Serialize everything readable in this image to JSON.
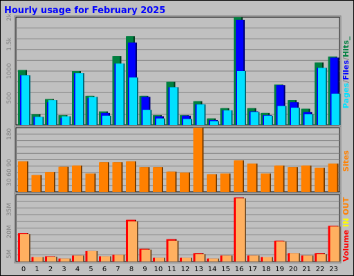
{
  "title": "Hourly usage for February 2025",
  "colors": {
    "background": "#c0c0c0",
    "title": "#0000ff",
    "grid": "#808080",
    "hits": "#008040",
    "files": "#0000ff",
    "pages": "#00e0ff",
    "sites": "#ff8000",
    "volume_in": "#ff0000",
    "volume_out": "#ffb060",
    "label_in": "#ffff00",
    "label_out": "#ff8000",
    "label_sep": "#c0c0c0"
  },
  "chart_data": [
    {
      "type": "bar",
      "ylabel_parts": [
        "Pages",
        "/",
        "Files",
        "/",
        "Hits",
        "_"
      ],
      "ylim": [
        0,
        2000
      ],
      "yticks": [
        {
          "value": 500,
          "label": "500"
        },
        {
          "value": 1000,
          "label": "1000"
        },
        {
          "value": 1500,
          "label": "1.5k"
        },
        {
          "value": 2000,
          "label": "2k"
        }
      ],
      "categories": [
        "0",
        "1",
        "2",
        "3",
        "4",
        "5",
        "6",
        "7",
        "8",
        "9",
        "10",
        "11",
        "12",
        "13",
        "14",
        "15",
        "16",
        "17",
        "18",
        "19",
        "20",
        "21",
        "22",
        "23"
      ],
      "series": [
        {
          "name": "Hits",
          "values": [
            1020,
            200,
            480,
            180,
            1000,
            540,
            250,
            1280,
            1650,
            540,
            180,
            800,
            180,
            440,
            120,
            310,
            2000,
            310,
            220,
            750,
            460,
            300,
            1160,
            1270
          ]
        },
        {
          "name": "Files",
          "values": [
            920,
            150,
            420,
            130,
            960,
            500,
            220,
            1140,
            1530,
            520,
            160,
            700,
            170,
            380,
            90,
            270,
            1950,
            250,
            180,
            740,
            420,
            240,
            1060,
            1250
          ]
        },
        {
          "name": "Pages",
          "values": [
            920,
            150,
            460,
            160,
            960,
            520,
            170,
            1140,
            880,
            280,
            120,
            700,
            110,
            380,
            70,
            270,
            1000,
            240,
            170,
            350,
            320,
            200,
            1060,
            580
          ]
        }
      ]
    },
    {
      "type": "bar",
      "ylabel": "Sites",
      "ylim": [
        0,
        200
      ],
      "yticks": [
        {
          "value": 30,
          "label": "30"
        },
        {
          "value": 60,
          "label": "60"
        },
        {
          "value": 90,
          "label": "90"
        },
        {
          "value": 180,
          "label": "180"
        }
      ],
      "categories": [
        "0",
        "1",
        "2",
        "3",
        "4",
        "5",
        "6",
        "7",
        "8",
        "9",
        "10",
        "11",
        "12",
        "13",
        "14",
        "15",
        "16",
        "17",
        "18",
        "19",
        "20",
        "21",
        "22",
        "23"
      ],
      "series": [
        {
          "name": "Sites",
          "values": [
            95,
            52,
            62,
            78,
            82,
            57,
            92,
            92,
            95,
            77,
            77,
            63,
            60,
            200,
            55,
            57,
            98,
            88,
            57,
            82,
            77,
            82,
            75,
            88
          ]
        }
      ]
    },
    {
      "type": "bar",
      "ylabel_parts": [
        "Volume",
        "/",
        "IN",
        "/",
        "OUT"
      ],
      "ylim": [
        0,
        45
      ],
      "yticks": [
        {
          "value": 5,
          "label": "5M"
        },
        {
          "value": 20,
          "label": "20M"
        },
        {
          "value": 35,
          "label": "35M"
        }
      ],
      "categories": [
        "0",
        "1",
        "2",
        "3",
        "4",
        "5",
        "6",
        "7",
        "8",
        "9",
        "10",
        "11",
        "12",
        "13",
        "14",
        "15",
        "16",
        "17",
        "18",
        "19",
        "20",
        "21",
        "22",
        "23"
      ],
      "series": [
        {
          "name": "IN",
          "values": [
            19,
            3,
            3.5,
            2,
            4,
            7,
            3.5,
            4.5,
            28,
            8.5,
            2.5,
            15,
            2.5,
            5.5,
            2,
            4,
            43,
            4,
            3,
            14,
            5.5,
            4,
            5.5,
            24
          ]
        },
        {
          "name": "OUT",
          "values": [
            18.5,
            3,
            3.2,
            2,
            4,
            7,
            3.5,
            4.5,
            27,
            8,
            2.5,
            14,
            2.5,
            5,
            2,
            4,
            42.5,
            4,
            3,
            13.5,
            5.5,
            4,
            5,
            23.5
          ]
        }
      ]
    }
  ]
}
